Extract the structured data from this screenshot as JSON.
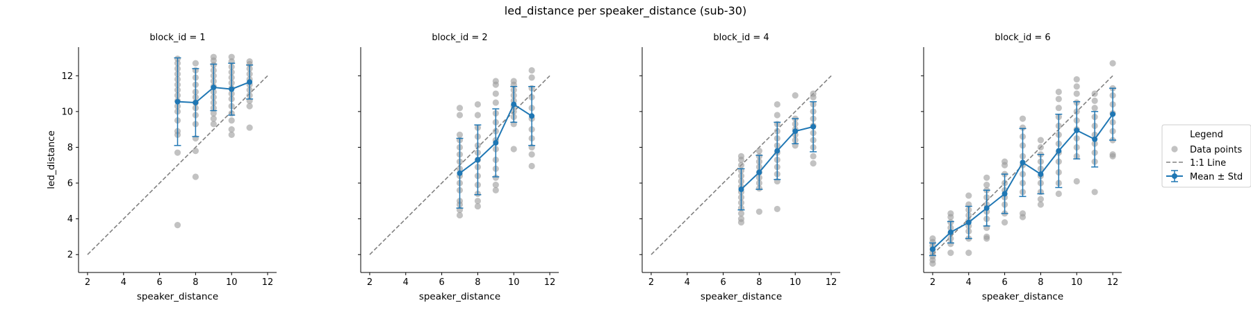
{
  "figure": {
    "suptitle": "led_distance per speaker_distance (sub-30)"
  },
  "legend": {
    "title": "Legend",
    "entries": [
      "Data points",
      "1:1 Line",
      "Mean ± Std"
    ],
    "placement": "right-center"
  },
  "colors": {
    "mean_line": "#1f77b4",
    "points": "#999999",
    "identity_line": "#808080"
  },
  "chart_data": [
    {
      "type": "scatter",
      "title": "block_id = 1",
      "xlabel": "speaker_distance",
      "ylabel": "led_distance",
      "xlim": [
        1.5,
        12.5
      ],
      "ylim": [
        1.0,
        13.6
      ],
      "xticks": [
        2,
        4,
        6,
        8,
        10,
        12
      ],
      "yticks": [
        2,
        4,
        6,
        8,
        10,
        12
      ],
      "identity_line": [
        2,
        12
      ],
      "mean": {
        "x": [
          7,
          8,
          9,
          10,
          11
        ],
        "y": [
          10.55,
          10.5,
          11.35,
          11.25,
          11.65
        ],
        "std": [
          2.45,
          1.9,
          1.3,
          1.45,
          0.95
        ]
      },
      "points": [
        {
          "x": 7,
          "y": [
            3.65,
            7.7,
            8.7,
            8.9,
            9.5,
            10.0,
            10.3,
            10.6,
            10.9,
            11.2,
            11.5,
            11.8,
            12.1,
            12.4,
            12.7,
            12.95
          ]
        },
        {
          "x": 8,
          "y": [
            6.35,
            7.8,
            8.5,
            9.3,
            9.8,
            10.2,
            10.5,
            10.8,
            11.1,
            11.5,
            11.9,
            12.3,
            12.7
          ]
        },
        {
          "x": 9,
          "y": [
            9.3,
            9.6,
            9.9,
            10.2,
            10.5,
            10.8,
            11.1,
            11.4,
            11.7,
            12.0,
            12.3,
            12.6,
            12.85,
            13.05
          ]
        },
        {
          "x": 10,
          "y": [
            8.7,
            9.0,
            9.5,
            9.9,
            10.3,
            10.7,
            11.0,
            11.3,
            11.6,
            11.9,
            12.2,
            12.5,
            12.8,
            13.05
          ]
        },
        {
          "x": 11,
          "y": [
            9.1,
            10.3,
            10.6,
            10.9,
            11.2,
            11.5,
            11.8,
            12.1,
            12.4,
            12.65,
            12.8
          ]
        }
      ]
    },
    {
      "type": "scatter",
      "title": "block_id = 2",
      "xlabel": "speaker_distance",
      "ylabel": "",
      "xlim": [
        1.5,
        12.5
      ],
      "ylim": [
        1.0,
        13.6
      ],
      "xticks": [
        2,
        4,
        6,
        8,
        10,
        12
      ],
      "yticks": [
        2,
        4,
        6,
        8,
        10,
        12
      ],
      "identity_line": [
        2,
        12
      ],
      "mean": {
        "x": [
          7,
          8,
          9,
          10,
          11
        ],
        "y": [
          6.55,
          7.3,
          8.25,
          10.4,
          9.75
        ],
        "std": [
          1.95,
          1.95,
          1.9,
          1.0,
          1.65
        ]
      },
      "points": [
        {
          "x": 7,
          "y": [
            4.2,
            4.5,
            4.8,
            5.0,
            5.6,
            6.0,
            6.4,
            6.8,
            7.2,
            7.6,
            8.0,
            8.4,
            8.7,
            9.8,
            10.2
          ]
        },
        {
          "x": 8,
          "y": [
            4.7,
            5.0,
            5.4,
            5.9,
            6.4,
            6.9,
            7.3,
            7.7,
            8.1,
            8.6,
            9.1,
            9.8,
            10.4
          ]
        },
        {
          "x": 9,
          "y": [
            5.6,
            5.9,
            6.3,
            6.8,
            7.3,
            7.9,
            8.4,
            8.9,
            9.4,
            9.9,
            10.5,
            11.0,
            11.5,
            11.7
          ]
        },
        {
          "x": 10,
          "y": [
            7.9,
            9.3,
            9.7,
            10.0,
            10.3,
            10.6,
            10.9,
            11.2,
            11.5,
            11.7
          ]
        },
        {
          "x": 11,
          "y": [
            6.95,
            7.6,
            8.0,
            8.5,
            9.0,
            9.6,
            10.2,
            10.8,
            11.3,
            11.9,
            12.3
          ]
        }
      ]
    },
    {
      "type": "scatter",
      "title": "block_id = 4",
      "xlabel": "speaker_distance",
      "ylabel": "",
      "xlim": [
        1.5,
        12.5
      ],
      "ylim": [
        1.0,
        13.6
      ],
      "xticks": [
        2,
        4,
        6,
        8,
        10,
        12
      ],
      "yticks": [
        2,
        4,
        6,
        8,
        10,
        12
      ],
      "identity_line": [
        2,
        12
      ],
      "mean": {
        "x": [
          7,
          8,
          9,
          10,
          11
        ],
        "y": [
          5.65,
          6.6,
          7.8,
          8.9,
          9.15
        ],
        "std": [
          1.15,
          0.95,
          1.6,
          0.7,
          1.4
        ]
      },
      "points": [
        {
          "x": 7,
          "y": [
            3.8,
            4.0,
            4.3,
            4.6,
            4.9,
            5.2,
            5.5,
            5.8,
            6.1,
            6.4,
            6.7,
            7.0,
            7.3,
            7.5
          ]
        },
        {
          "x": 8,
          "y": [
            4.4,
            5.7,
            6.0,
            6.3,
            6.6,
            6.9,
            7.2,
            7.5,
            7.8
          ]
        },
        {
          "x": 9,
          "y": [
            4.55,
            6.1,
            6.5,
            6.9,
            7.3,
            7.7,
            8.1,
            8.5,
            8.9,
            9.3,
            9.8,
            10.4
          ]
        },
        {
          "x": 10,
          "y": [
            8.1,
            8.4,
            8.7,
            9.0,
            9.3,
            9.6,
            10.9
          ]
        },
        {
          "x": 11,
          "y": [
            7.1,
            7.5,
            8.0,
            8.4,
            8.8,
            9.2,
            9.6,
            10.0,
            10.4,
            10.8,
            11.0
          ]
        }
      ]
    },
    {
      "type": "scatter",
      "title": "block_id = 6",
      "xlabel": "speaker_distance",
      "ylabel": "",
      "xlim": [
        1.5,
        12.5
      ],
      "ylim": [
        1.0,
        13.6
      ],
      "xticks": [
        2,
        4,
        6,
        8,
        10,
        12
      ],
      "yticks": [
        2,
        4,
        6,
        8,
        10,
        12
      ],
      "identity_line": [
        2,
        12
      ],
      "mean": {
        "x": [
          2,
          3,
          4,
          5,
          6,
          7,
          8,
          9,
          10,
          11,
          12
        ],
        "y": [
          2.3,
          3.25,
          3.8,
          4.6,
          5.4,
          7.15,
          6.5,
          7.8,
          8.95,
          8.45,
          9.85
        ],
        "std": [
          0.35,
          0.6,
          0.9,
          1.0,
          1.1,
          1.9,
          1.1,
          2.05,
          1.6,
          1.55,
          1.45
        ]
      },
      "points": [
        {
          "x": 2,
          "y": [
            1.5,
            1.7,
            1.9,
            2.1,
            2.3,
            2.5,
            2.7,
            2.9
          ]
        },
        {
          "x": 3,
          "y": [
            2.1,
            2.6,
            2.9,
            3.2,
            3.5,
            3.8,
            4.1,
            4.3
          ]
        },
        {
          "x": 4,
          "y": [
            2.1,
            2.9,
            3.3,
            3.6,
            3.9,
            4.2,
            4.5,
            4.8,
            5.3
          ]
        },
        {
          "x": 5,
          "y": [
            2.9,
            3.0,
            3.5,
            4.0,
            4.4,
            4.8,
            5.2,
            5.6,
            5.9,
            6.3
          ]
        },
        {
          "x": 6,
          "y": [
            3.8,
            4.3,
            4.8,
            5.2,
            5.6,
            6.0,
            6.5,
            7.0,
            7.2
          ]
        },
        {
          "x": 7,
          "y": [
            4.1,
            4.3,
            5.5,
            6.0,
            6.5,
            7.0,
            7.5,
            8.1,
            8.6,
            9.1,
            9.6
          ]
        },
        {
          "x": 8,
          "y": [
            4.8,
            5.1,
            5.5,
            6.0,
            6.4,
            6.8,
            7.2,
            7.6,
            8.0,
            8.4
          ]
        },
        {
          "x": 9,
          "y": [
            5.4,
            6.0,
            6.6,
            7.2,
            7.7,
            8.2,
            8.7,
            9.2,
            9.7,
            10.2,
            10.7,
            11.1
          ]
        },
        {
          "x": 10,
          "y": [
            6.1,
            7.5,
            8.0,
            8.5,
            9.0,
            9.5,
            10.0,
            10.5,
            11.0,
            11.4,
            11.8
          ]
        },
        {
          "x": 11,
          "y": [
            5.5,
            7.2,
            7.7,
            8.2,
            8.7,
            9.2,
            9.7,
            10.2,
            10.6,
            11.0
          ]
        },
        {
          "x": 12,
          "y": [
            7.5,
            7.6,
            8.4,
            8.9,
            9.4,
            9.9,
            10.4,
            10.9,
            11.3,
            12.7
          ]
        }
      ]
    }
  ]
}
